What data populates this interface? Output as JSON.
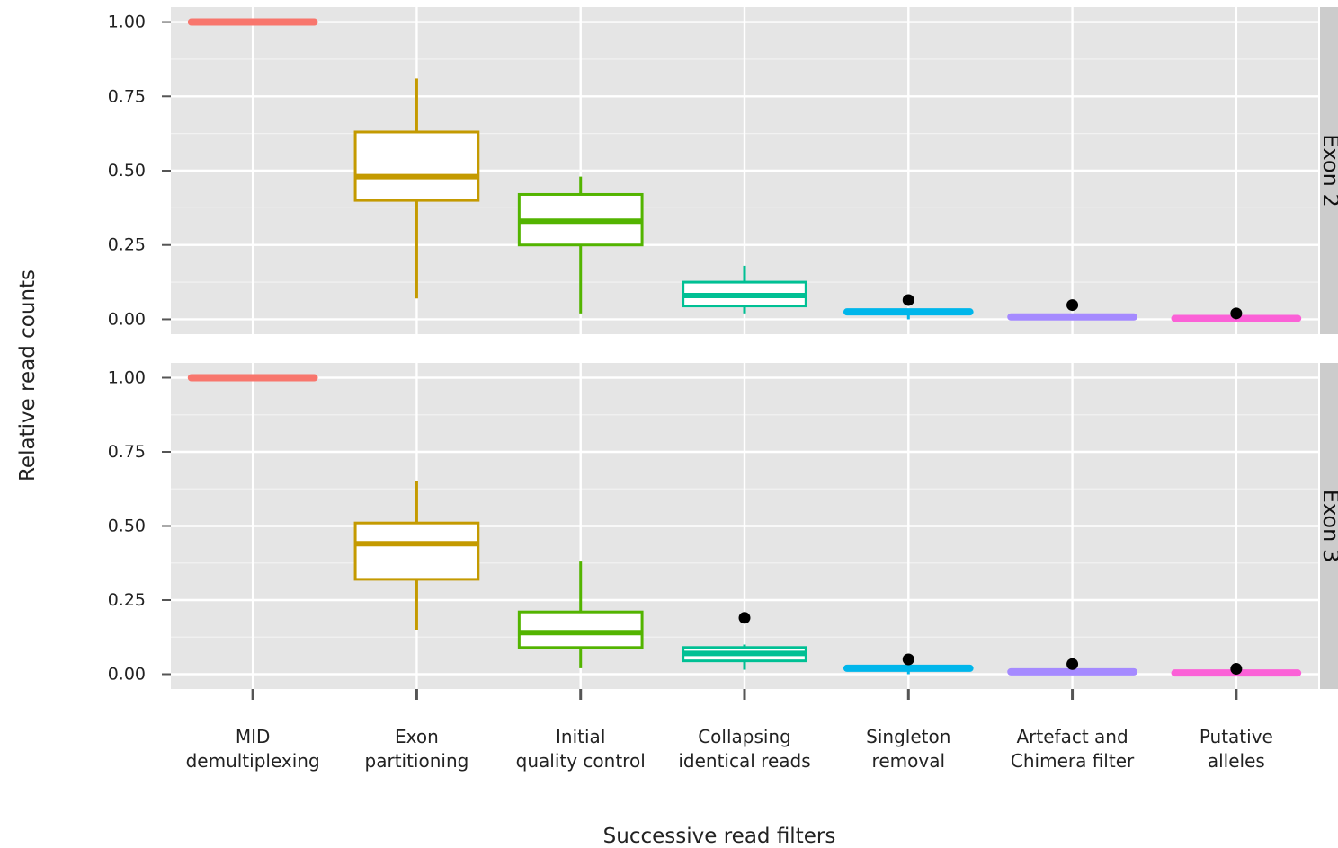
{
  "chart_data": {
    "type": "box",
    "xlabel": "Successive read filters",
    "ylabel": "Relative read counts",
    "ylim": [
      0,
      1
    ],
    "yticks": [
      "0.00",
      "0.25",
      "0.50",
      "0.75",
      "1.00"
    ],
    "grid": true,
    "categories": [
      [
        "MID",
        "demultiplexing"
      ],
      [
        "Exon",
        "partitioning"
      ],
      [
        "Initial",
        "quality control"
      ],
      [
        "Collapsing",
        "identical reads"
      ],
      [
        "Singleton",
        "removal"
      ],
      [
        "Artefact and",
        "Chimera filter"
      ],
      [
        "Putative",
        "alleles"
      ]
    ],
    "colors": [
      "#F8766D",
      "#C49A00",
      "#53B400",
      "#00C094",
      "#00B6EB",
      "#A58AFF",
      "#FB61D7"
    ],
    "panels": [
      {
        "strip": "Exon 2",
        "boxes": [
          {
            "min": 1.0,
            "q1": 1.0,
            "median": 1.0,
            "q3": 1.0,
            "max": 1.0,
            "outliers": []
          },
          {
            "min": 0.07,
            "q1": 0.4,
            "median": 0.48,
            "q3": 0.63,
            "max": 0.81,
            "outliers": []
          },
          {
            "min": 0.02,
            "q1": 0.25,
            "median": 0.33,
            "q3": 0.42,
            "max": 0.48,
            "outliers": []
          },
          {
            "min": 0.02,
            "q1": 0.045,
            "median": 0.08,
            "q3": 0.125,
            "max": 0.18,
            "outliers": []
          },
          {
            "min": 0.0,
            "q1": 0.02,
            "median": 0.025,
            "q3": 0.03,
            "max": 0.03,
            "outliers": [
              0.065
            ]
          },
          {
            "min": 0.0,
            "q1": 0.005,
            "median": 0.008,
            "q3": 0.012,
            "max": 0.012,
            "outliers": [
              0.048
            ]
          },
          {
            "min": 0.0,
            "q1": 0.0,
            "median": 0.003,
            "q3": 0.006,
            "max": 0.006,
            "outliers": [
              0.02
            ]
          }
        ]
      },
      {
        "strip": "Exon 3",
        "boxes": [
          {
            "min": 1.0,
            "q1": 1.0,
            "median": 1.0,
            "q3": 1.0,
            "max": 1.0,
            "outliers": []
          },
          {
            "min": 0.15,
            "q1": 0.32,
            "median": 0.44,
            "q3": 0.51,
            "max": 0.65,
            "outliers": []
          },
          {
            "min": 0.02,
            "q1": 0.09,
            "median": 0.14,
            "q3": 0.21,
            "max": 0.38,
            "outliers": []
          },
          {
            "min": 0.015,
            "q1": 0.045,
            "median": 0.07,
            "q3": 0.09,
            "max": 0.1,
            "outliers": [
              0.19
            ]
          },
          {
            "min": 0.0,
            "q1": 0.015,
            "median": 0.02,
            "q3": 0.025,
            "max": 0.03,
            "outliers": [
              0.05
            ]
          },
          {
            "min": 0.0,
            "q1": 0.005,
            "median": 0.008,
            "q3": 0.012,
            "max": 0.012,
            "outliers": [
              0.034
            ]
          },
          {
            "min": 0.0,
            "q1": 0.0,
            "median": 0.004,
            "q3": 0.008,
            "max": 0.008,
            "outliers": [
              0.018
            ]
          }
        ]
      }
    ]
  }
}
